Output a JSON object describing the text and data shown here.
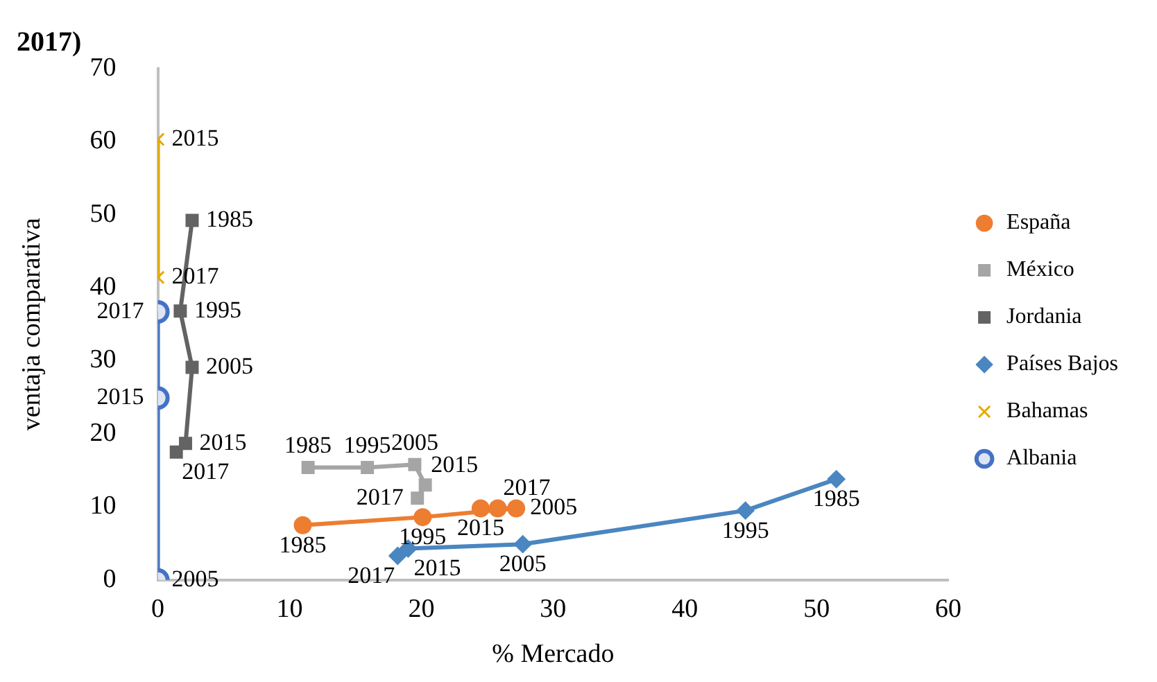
{
  "chart_data": {
    "type": "line",
    "title": "2017)",
    "xlabel": "% Mercado",
    "ylabel": "ventaja comparativa",
    "xlim": [
      0,
      60
    ],
    "xticks": [
      0,
      10,
      20,
      30,
      40,
      50,
      60
    ],
    "ylim": [
      0,
      70
    ],
    "yticks": [
      0,
      10,
      20,
      30,
      40,
      50,
      60,
      70
    ],
    "grid": false,
    "legend": "right",
    "line_style": "solid",
    "series": [
      {
        "name": "España",
        "color": "#ed7d31",
        "marker": "circle",
        "x": [
          11,
          20.1,
          27.2,
          24.5,
          25.8
        ],
        "values": [
          7.5,
          8.6,
          9.8,
          9.8,
          9.8
        ]
      },
      {
        "name": "México",
        "color": "#a5a5a5",
        "marker": "square",
        "x": [
          11.4,
          15.9,
          19.5,
          20.3,
          19.7
        ],
        "values": [
          15.4,
          15.4,
          15.8,
          13,
          11.2
        ]
      },
      {
        "name": "Jordania",
        "color": "#636363",
        "marker": "square",
        "x": [
          2.6,
          1.7,
          2.6,
          2.1,
          1.4
        ],
        "values": [
          49.2,
          36.8,
          29.1,
          18.7,
          17.5
        ]
      },
      {
        "name": "Países Bajos",
        "color": "#4a86c0",
        "marker": "diamond",
        "x": [
          51.5,
          44.6,
          27.7,
          19,
          18.2
        ],
        "values": [
          13.8,
          9.5,
          4.9,
          4.3,
          3.3
        ]
      },
      {
        "name": "Bahamas",
        "color": "#e5a800",
        "marker": "cross",
        "x": [
          0,
          0
        ],
        "values": [
          60.3,
          41.4
        ]
      },
      {
        "name": "Albania",
        "color": "#4472c4",
        "marker": "circle",
        "x": [
          0,
          0,
          0
        ],
        "values": [
          0,
          24.9,
          36.7
        ]
      }
    ],
    "annotations": [
      {
        "text": "1985",
        "x": 11,
        "y": 7.5
      },
      {
        "text": "1995",
        "x": 20.1,
        "y": 8.6
      },
      {
        "text": "2005",
        "x": 27.2,
        "y": 9.8
      },
      {
        "text": "2015",
        "x": 24.5,
        "y": 9.8
      },
      {
        "text": "2017",
        "x": 25.8,
        "y": 9.8
      },
      {
        "text": "1985",
        "x": 11.4,
        "y": 15.4
      },
      {
        "text": "1995",
        "x": 15.9,
        "y": 15.4
      },
      {
        "text": "2005",
        "x": 19.5,
        "y": 15.8
      },
      {
        "text": "2015",
        "x": 20.3,
        "y": 13
      },
      {
        "text": "2017",
        "x": 19.7,
        "y": 11.2
      },
      {
        "text": "1985",
        "x": 2.6,
        "y": 49.2
      },
      {
        "text": "1995",
        "x": 1.7,
        "y": 36.8
      },
      {
        "text": "2005",
        "x": 2.6,
        "y": 29.1
      },
      {
        "text": "2015",
        "x": 2.1,
        "y": 18.7
      },
      {
        "text": "2017",
        "x": 1.4,
        "y": 17.5
      },
      {
        "text": "1985",
        "x": 51.5,
        "y": 13.8
      },
      {
        "text": "1995",
        "x": 44.6,
        "y": 9.5
      },
      {
        "text": "2005",
        "x": 27.7,
        "y": 4.9
      },
      {
        "text": "2015",
        "x": 19,
        "y": 4.3
      },
      {
        "text": "2017",
        "x": 18.2,
        "y": 3.3
      },
      {
        "text": "2015",
        "x": 0,
        "y": 60.3
      },
      {
        "text": "2017",
        "x": 0,
        "y": 41.4
      },
      {
        "text": "2005",
        "x": 0,
        "y": 0
      },
      {
        "text": "2015",
        "x": 0,
        "y": 24.9
      },
      {
        "text": "2017",
        "x": 0,
        "y": 36.7
      }
    ]
  }
}
